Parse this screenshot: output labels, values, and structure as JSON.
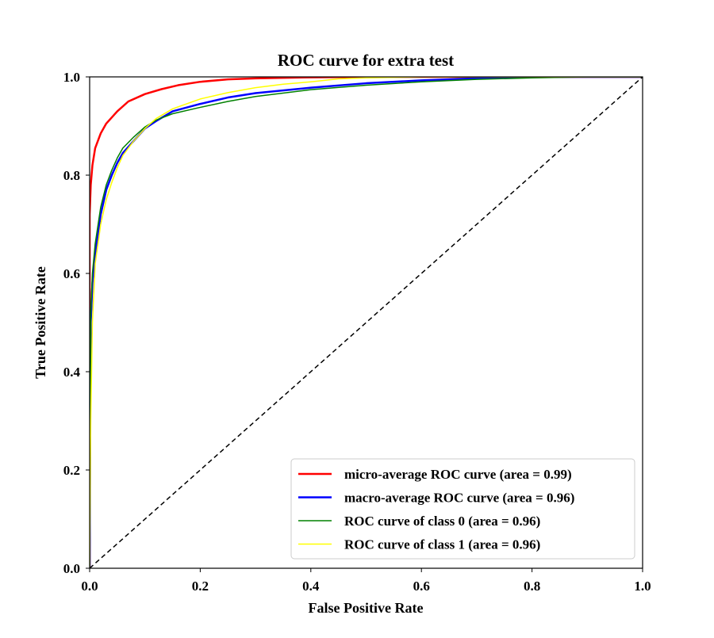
{
  "chart_data": {
    "type": "line",
    "title": "ROC curve for extra test",
    "xlabel": "False Positive Rate",
    "ylabel": "True Positive Rate",
    "xlim": [
      0.0,
      1.0
    ],
    "ylim": [
      0.0,
      1.0
    ],
    "xticks": [
      "0.0",
      "0.2",
      "0.4",
      "0.6",
      "0.8",
      "1.0"
    ],
    "yticks": [
      "0.0",
      "0.2",
      "0.4",
      "0.6",
      "0.8",
      "1.0"
    ],
    "grid": false,
    "legend_position": "lower-right",
    "series": [
      {
        "name": "micro-average ROC curve (area = 0.99)",
        "color": "#ff0000",
        "x": [
          0.0,
          0.0,
          0.002,
          0.005,
          0.01,
          0.02,
          0.03,
          0.05,
          0.07,
          0.1,
          0.13,
          0.16,
          0.2,
          0.25,
          0.3,
          0.4,
          0.5,
          0.6,
          0.8,
          1.0
        ],
        "y": [
          0.0,
          0.72,
          0.78,
          0.82,
          0.855,
          0.885,
          0.905,
          0.93,
          0.95,
          0.965,
          0.975,
          0.983,
          0.99,
          0.995,
          0.997,
          0.999,
          1.0,
          1.0,
          1.0,
          1.0
        ]
      },
      {
        "name": "macro-average ROC curve (area = 0.96)",
        "color": "#0000ff",
        "x": [
          0.0,
          0.002,
          0.005,
          0.01,
          0.02,
          0.03,
          0.04,
          0.05,
          0.06,
          0.08,
          0.1,
          0.12,
          0.15,
          0.2,
          0.25,
          0.3,
          0.4,
          0.5,
          0.6,
          0.7,
          0.8,
          1.0
        ],
        "y": [
          0.0,
          0.5,
          0.58,
          0.64,
          0.72,
          0.77,
          0.8,
          0.825,
          0.845,
          0.87,
          0.895,
          0.91,
          0.93,
          0.945,
          0.958,
          0.967,
          0.978,
          0.987,
          0.993,
          0.997,
          1.0,
          1.0
        ]
      },
      {
        "name": "ROC curve of class 0 (area = 0.96)",
        "color": "#008000",
        "x": [
          0.0,
          0.002,
          0.005,
          0.01,
          0.02,
          0.03,
          0.04,
          0.05,
          0.06,
          0.08,
          0.1,
          0.12,
          0.15,
          0.2,
          0.25,
          0.3,
          0.4,
          0.5,
          0.6,
          0.7,
          0.8,
          0.9,
          1.0
        ],
        "y": [
          0.0,
          0.52,
          0.6,
          0.66,
          0.735,
          0.78,
          0.81,
          0.835,
          0.855,
          0.878,
          0.898,
          0.912,
          0.925,
          0.938,
          0.95,
          0.96,
          0.974,
          0.983,
          0.99,
          0.995,
          0.998,
          1.0,
          1.0
        ]
      },
      {
        "name": "ROC curve of class 1 (area = 0.96)",
        "color": "#ffff00",
        "x": [
          0.0,
          0.002,
          0.005,
          0.01,
          0.02,
          0.03,
          0.04,
          0.05,
          0.06,
          0.08,
          0.1,
          0.12,
          0.15,
          0.2,
          0.25,
          0.3,
          0.35,
          0.4,
          0.45,
          0.5,
          0.6,
          0.8,
          1.0
        ],
        "y": [
          0.0,
          0.3,
          0.5,
          0.62,
          0.7,
          0.75,
          0.785,
          0.815,
          0.84,
          0.87,
          0.895,
          0.915,
          0.935,
          0.955,
          0.968,
          0.978,
          0.985,
          0.99,
          0.996,
          0.998,
          1.0,
          1.0,
          1.0
        ]
      }
    ],
    "reference_line": {
      "color": "#000000",
      "style": "dashed",
      "x": [
        0.0,
        1.0
      ],
      "y": [
        0.0,
        1.0
      ]
    }
  }
}
